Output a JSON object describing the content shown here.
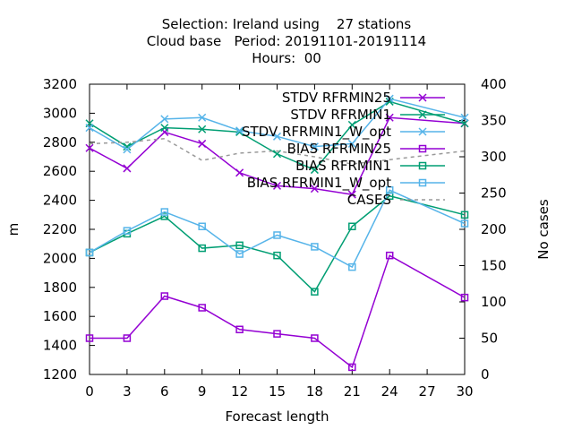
{
  "chart_data": {
    "type": "line",
    "title": [
      "Selection: Ireland using    27 stations",
      "Cloud base   Period: 20191101-20191114",
      "Hours:  00"
    ],
    "xlabel": "Forecast length",
    "ylabel": "m",
    "y2label": "No cases",
    "xlim": [
      0,
      30
    ],
    "ylim": [
      1200,
      3200
    ],
    "y2lim": [
      0,
      400
    ],
    "xticks": [
      "0",
      "3",
      "6",
      "9",
      "12",
      "15",
      "18",
      "21",
      "24",
      "27",
      "30"
    ],
    "yticks": [
      "1200",
      "1400",
      "1600",
      "1800",
      "2000",
      "2200",
      "2400",
      "2600",
      "2800",
      "3000",
      "3200"
    ],
    "y2ticks": [
      "0",
      "50",
      "100",
      "150",
      "200",
      "250",
      "300",
      "350",
      "400"
    ],
    "legend_position": "top-right",
    "grid": false,
    "x": [
      0,
      3,
      6,
      9,
      12,
      15,
      18,
      21,
      24,
      30
    ],
    "series": [
      {
        "name": "STDV RFRMIN25",
        "axis": "y1",
        "marker": "x",
        "color": "#9400d3",
        "dash": "",
        "values": [
          2760,
          2620,
          2870,
          2790,
          2590,
          2500,
          2480,
          2440,
          2970,
          2930
        ]
      },
      {
        "name": "STDV RFRMIN1",
        "axis": "y1",
        "marker": "x",
        "color": "#009e73",
        "dash": "",
        "values": [
          2930,
          2770,
          2900,
          2890,
          2870,
          2720,
          2610,
          2920,
          3080,
          2930
        ]
      },
      {
        "name": "STDV RFRMIN1_W_opt",
        "axis": "y1",
        "marker": "x",
        "color": "#56b4e9",
        "dash": "",
        "values": [
          2900,
          2750,
          2960,
          2970,
          2880,
          2840,
          2770,
          2790,
          3100,
          2970
        ]
      },
      {
        "name": "BIAS RFRMIN25",
        "axis": "y1",
        "marker": "square",
        "color": "#9400d3",
        "dash": "",
        "values": [
          1450,
          1450,
          1740,
          1660,
          1510,
          1480,
          1450,
          1250,
          2020,
          1730
        ]
      },
      {
        "name": "BIAS RFRMIN1",
        "axis": "y1",
        "marker": "square",
        "color": "#009e73",
        "dash": "",
        "values": [
          2040,
          2170,
          2290,
          2070,
          2090,
          2020,
          1770,
          2220,
          2430,
          2300
        ]
      },
      {
        "name": "BIAS RFRMIN1_W_opt",
        "axis": "y1",
        "marker": "square",
        "color": "#56b4e9",
        "dash": "",
        "values": [
          2040,
          2190,
          2320,
          2220,
          2030,
          2160,
          2080,
          1940,
          2470,
          2240
        ]
      },
      {
        "name": "CASES",
        "axis": "y2",
        "marker": "none",
        "color": "#999999",
        "dash": "4,4",
        "values": [
          318,
          320,
          325,
          295,
          305,
          308,
          300,
          290,
          296,
          308
        ]
      }
    ]
  }
}
